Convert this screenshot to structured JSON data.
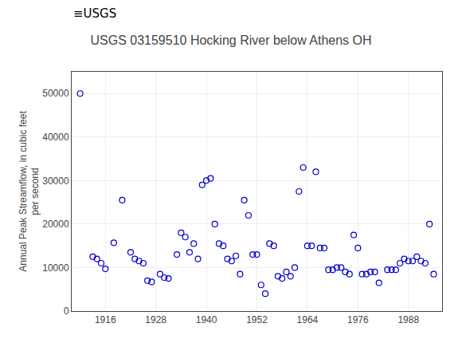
{
  "chart_data": {
    "type": "scatter",
    "title": "USGS 03159510 Hocking River below Athens OH",
    "ylabel": "Annual Peak Streamflow, in cubic feet\nper second",
    "annotations": [
      "≡USGS"
    ],
    "x": [
      1910,
      1913,
      1914,
      1915,
      1916,
      1918,
      1920,
      1922,
      1923,
      1924,
      1925,
      1926,
      1927,
      1929,
      1930,
      1931,
      1933,
      1934,
      1935,
      1936,
      1937,
      1938,
      1939,
      1940,
      1941,
      1942,
      1943,
      1944,
      1945,
      1946,
      1947,
      1948,
      1949,
      1950,
      1951,
      1952,
      1953,
      1954,
      1955,
      1956,
      1957,
      1958,
      1959,
      1960,
      1961,
      1962,
      1963,
      1964,
      1965,
      1966,
      1967,
      1968,
      1969,
      1970,
      1971,
      1972,
      1973,
      1974,
      1975,
      1976,
      1977,
      1978,
      1979,
      1980,
      1981,
      1983,
      1984,
      1985,
      1986,
      1987,
      1988,
      1989,
      1990,
      1991,
      1992,
      1993,
      1994
    ],
    "values": [
      50000,
      12500,
      12000,
      11000,
      9700,
      15700,
      25500,
      13500,
      12000,
      11500,
      11000,
      7000,
      6700,
      8500,
      7700,
      7500,
      13000,
      18000,
      17000,
      13500,
      15500,
      12000,
      29000,
      30000,
      30500,
      20000,
      15500,
      15000,
      12000,
      11500,
      12700,
      8500,
      25500,
      22000,
      13000,
      13000,
      6000,
      4000,
      15500,
      15000,
      8000,
      7500,
      9000,
      8000,
      10000,
      27500,
      33000,
      15000,
      15000,
      32000,
      14500,
      14500,
      9500,
      9500,
      10000,
      10000,
      9000,
      8500,
      17500,
      14500,
      8500,
      8500,
      9000,
      9000,
      6500,
      9500,
      9500,
      9500,
      11000,
      12000,
      11500,
      11500,
      12500,
      11500,
      11000,
      20000,
      8500
    ],
    "color": "#0000cc",
    "marker": "open circle",
    "xlim": [
      1908,
      1996
    ],
    "xticks": [
      1916,
      1928,
      1940,
      1952,
      1964,
      1976,
      1988
    ],
    "ylim": [
      0,
      55000
    ],
    "yticks": [
      0,
      10000,
      20000,
      30000,
      40000,
      50000
    ],
    "grid": true
  }
}
